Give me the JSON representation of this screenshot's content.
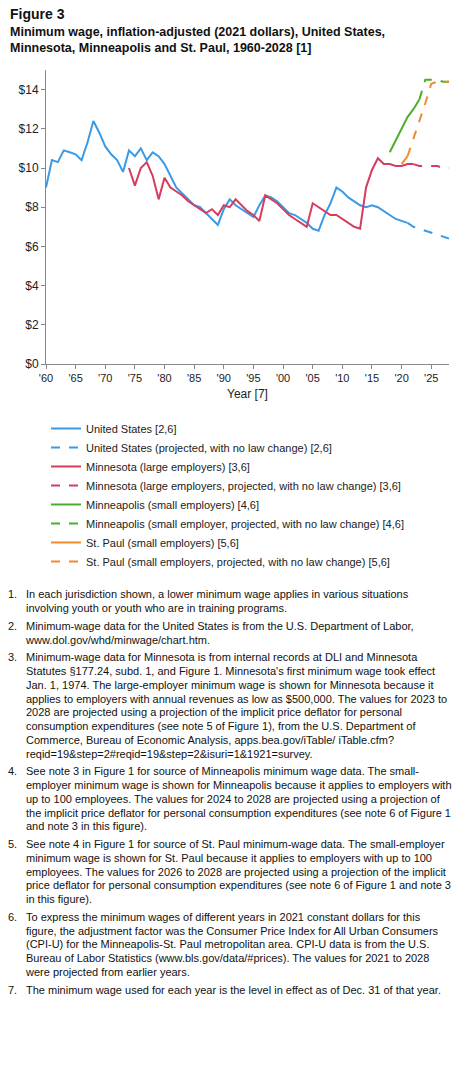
{
  "chart_data": {
    "type": "line",
    "title": "Figure 3",
    "subtitle": "Minimum wage, inflation-adjusted (2021 dollars), United States, Minnesota, Minneapolis and St. Paul, 1960-2028 [1]",
    "x_label": "Year [7]",
    "x": [
      1960,
      1961,
      1962,
      1963,
      1964,
      1965,
      1966,
      1967,
      1968,
      1969,
      1970,
      1971,
      1972,
      1973,
      1974,
      1975,
      1976,
      1977,
      1978,
      1979,
      1980,
      1981,
      1982,
      1983,
      1984,
      1985,
      1986,
      1987,
      1988,
      1989,
      1990,
      1991,
      1992,
      1993,
      1994,
      1995,
      1996,
      1997,
      1998,
      1999,
      2000,
      2001,
      2002,
      2003,
      2004,
      2005,
      2006,
      2007,
      2008,
      2009,
      2010,
      2011,
      2012,
      2013,
      2014,
      2015,
      2016,
      2017,
      2018,
      2019,
      2020,
      2021,
      2022,
      2023,
      2024,
      2025,
      2026,
      2027,
      2028
    ],
    "xlim": [
      1960,
      2028
    ],
    "xticks": [
      {
        "value": 1960,
        "label": "'60"
      },
      {
        "value": 1965,
        "label": "'65"
      },
      {
        "value": 1970,
        "label": "'70"
      },
      {
        "value": 1975,
        "label": "'75"
      },
      {
        "value": 1980,
        "label": "'80"
      },
      {
        "value": 1985,
        "label": "'85"
      },
      {
        "value": 1990,
        "label": "'90"
      },
      {
        "value": 1995,
        "label": "'95"
      },
      {
        "value": 2000,
        "label": "'00"
      },
      {
        "value": 2005,
        "label": "'05"
      },
      {
        "value": 2010,
        "label": "'10"
      },
      {
        "value": 2015,
        "label": "'15"
      },
      {
        "value": 2020,
        "label": "'20"
      },
      {
        "value": 2025,
        "label": "'25"
      }
    ],
    "ylim": [
      0,
      15
    ],
    "yticks": [
      {
        "value": 0,
        "label": "$0"
      },
      {
        "value": 2,
        "label": "$2"
      },
      {
        "value": 4,
        "label": "$4"
      },
      {
        "value": 6,
        "label": "$6"
      },
      {
        "value": 8,
        "label": "$8"
      },
      {
        "value": 10,
        "label": "$10"
      },
      {
        "value": 12,
        "label": "$12"
      },
      {
        "value": 14,
        "label": "$14"
      }
    ],
    "grid": false,
    "legend": "bottom",
    "series": [
      {
        "name": "United States [2,6]",
        "color": "#3a9ae6",
        "line_style": "solid",
        "values": [
          9.0,
          10.4,
          10.3,
          10.9,
          10.8,
          10.7,
          10.4,
          11.3,
          12.4,
          11.8,
          11.1,
          10.7,
          10.4,
          9.8,
          10.9,
          10.6,
          11.0,
          10.4,
          10.8,
          10.6,
          10.2,
          9.6,
          9.0,
          8.7,
          8.4,
          8.1,
          8.0,
          7.7,
          7.4,
          7.1,
          7.9,
          8.4,
          8.1,
          7.9,
          7.7,
          7.5,
          8.1,
          8.6,
          8.5,
          8.3,
          8.0,
          7.7,
          7.6,
          7.4,
          7.2,
          6.9,
          6.8,
          7.6,
          8.2,
          9.0,
          8.8,
          8.5,
          8.3,
          8.1,
          8.0,
          8.1,
          8.0,
          7.8,
          7.6,
          7.4,
          7.3,
          7.2,
          null,
          null,
          null,
          null,
          null,
          null,
          null
        ]
      },
      {
        "name": "United States (projected, with no law change) [2,6]",
        "color": "#3a9ae6",
        "line_style": "dash",
        "values": [
          null,
          null,
          null,
          null,
          null,
          null,
          null,
          null,
          null,
          null,
          null,
          null,
          null,
          null,
          null,
          null,
          null,
          null,
          null,
          null,
          null,
          null,
          null,
          null,
          null,
          null,
          null,
          null,
          null,
          null,
          null,
          null,
          null,
          null,
          null,
          null,
          null,
          null,
          null,
          null,
          null,
          null,
          null,
          null,
          null,
          null,
          null,
          null,
          null,
          null,
          null,
          null,
          null,
          null,
          null,
          null,
          null,
          null,
          null,
          null,
          null,
          7.2,
          7.0,
          6.9,
          6.8,
          6.7,
          6.6,
          6.5,
          6.4
        ]
      },
      {
        "name": "Minnesota (large employers) [3,6]",
        "color": "#d63c5e",
        "line_style": "solid",
        "values": [
          null,
          null,
          null,
          null,
          null,
          null,
          null,
          null,
          null,
          null,
          null,
          null,
          null,
          null,
          10.0,
          9.1,
          10.0,
          10.3,
          9.6,
          8.4,
          9.5,
          9.0,
          8.8,
          8.6,
          8.3,
          8.1,
          7.9,
          7.7,
          7.9,
          7.6,
          8.1,
          8.0,
          8.4,
          8.1,
          7.8,
          7.6,
          7.3,
          8.6,
          8.4,
          8.2,
          7.9,
          7.6,
          7.4,
          7.2,
          7.0,
          8.2,
          8.0,
          7.8,
          7.6,
          7.6,
          7.4,
          7.2,
          7.0,
          6.9,
          9.0,
          9.9,
          10.5,
          10.2,
          10.2,
          10.1,
          10.1,
          10.2,
          10.2,
          null,
          null,
          null,
          null,
          null,
          null
        ]
      },
      {
        "name": "Minnesota (large employers, projected, with no law change) [3,6]",
        "color": "#d63c5e",
        "line_style": "dash",
        "values": [
          null,
          null,
          null,
          null,
          null,
          null,
          null,
          null,
          null,
          null,
          null,
          null,
          null,
          null,
          null,
          null,
          null,
          null,
          null,
          null,
          null,
          null,
          null,
          null,
          null,
          null,
          null,
          null,
          null,
          null,
          null,
          null,
          null,
          null,
          null,
          null,
          null,
          null,
          null,
          null,
          null,
          null,
          null,
          null,
          null,
          null,
          null,
          null,
          null,
          null,
          null,
          null,
          null,
          null,
          null,
          null,
          null,
          null,
          null,
          null,
          null,
          null,
          10.2,
          10.1,
          10.1,
          10.1,
          10.1,
          10.0,
          10.0
        ]
      },
      {
        "name": "Minneapolis (small employers) [4,6]",
        "color": "#4caf2a",
        "line_style": "solid",
        "values": [
          null,
          null,
          null,
          null,
          null,
          null,
          null,
          null,
          null,
          null,
          null,
          null,
          null,
          null,
          null,
          null,
          null,
          null,
          null,
          null,
          null,
          null,
          null,
          null,
          null,
          null,
          null,
          null,
          null,
          null,
          null,
          null,
          null,
          null,
          null,
          null,
          null,
          null,
          null,
          null,
          null,
          null,
          null,
          null,
          null,
          null,
          null,
          null,
          null,
          null,
          null,
          null,
          null,
          null,
          null,
          null,
          null,
          null,
          10.8,
          11.4,
          12.0,
          12.6,
          13.0,
          13.5,
          null,
          null,
          null,
          null,
          null
        ]
      },
      {
        "name": "Minneapolis (small employer, projected, with no law change) [4,6]",
        "color": "#4caf2a",
        "line_style": "dash",
        "values": [
          null,
          null,
          null,
          null,
          null,
          null,
          null,
          null,
          null,
          null,
          null,
          null,
          null,
          null,
          null,
          null,
          null,
          null,
          null,
          null,
          null,
          null,
          null,
          null,
          null,
          null,
          null,
          null,
          null,
          null,
          null,
          null,
          null,
          null,
          null,
          null,
          null,
          null,
          null,
          null,
          null,
          null,
          null,
          null,
          null,
          null,
          null,
          null,
          null,
          null,
          null,
          null,
          null,
          null,
          null,
          null,
          null,
          null,
          null,
          null,
          null,
          null,
          null,
          13.5,
          14.5,
          14.5,
          14.5,
          14.4,
          14.4
        ]
      },
      {
        "name": "St. Paul (small employers) [5,6]",
        "color": "#f28a2e",
        "line_style": "solid",
        "values": [
          null,
          null,
          null,
          null,
          null,
          null,
          null,
          null,
          null,
          null,
          null,
          null,
          null,
          null,
          null,
          null,
          null,
          null,
          null,
          null,
          null,
          null,
          null,
          null,
          null,
          null,
          null,
          null,
          null,
          null,
          null,
          null,
          null,
          null,
          null,
          null,
          null,
          null,
          null,
          null,
          null,
          null,
          null,
          null,
          null,
          null,
          null,
          null,
          null,
          null,
          null,
          null,
          null,
          null,
          null,
          null,
          null,
          null,
          null,
          null,
          10.2,
          10.6,
          null,
          null,
          null,
          null,
          null,
          null,
          null
        ]
      },
      {
        "name": "St. Paul (small employers, projected, with no law change) [5,6]",
        "color": "#f28a2e",
        "line_style": "dash",
        "values": [
          null,
          null,
          null,
          null,
          null,
          null,
          null,
          null,
          null,
          null,
          null,
          null,
          null,
          null,
          null,
          null,
          null,
          null,
          null,
          null,
          null,
          null,
          null,
          null,
          null,
          null,
          null,
          null,
          null,
          null,
          null,
          null,
          null,
          null,
          null,
          null,
          null,
          null,
          null,
          null,
          null,
          null,
          null,
          null,
          null,
          null,
          null,
          null,
          null,
          null,
          null,
          null,
          null,
          null,
          null,
          null,
          null,
          null,
          null,
          null,
          null,
          10.6,
          11.5,
          12.3,
          13.3,
          14.3,
          14.4,
          14.4,
          14.4
        ]
      }
    ],
    "notes": [
      {
        "number": "1.",
        "text": "In each jurisdiction shown, a lower minimum wage applies in various situations involving youth or youth who are in training programs."
      },
      {
        "number": "2.",
        "text": "Minimum-wage data for the United States is from the U.S. Department of Labor, www.dol.gov/whd/minwage/chart.htm."
      },
      {
        "number": "3.",
        "text": "Minimum-wage data for Minnesota is from internal records at DLI and Minnesota Statutes §177.24, subd. 1, and Figure 1. Minnesota's first minimum wage took effect Jan. 1, 1974. The large-employer minimum wage is shown for Minnesota because it applies to employers with annual revenues as low as $500,000. The values for 2023 to 2028 are projected using a projection of the implicit price deflator for personal consumption expenditures (see note 5 of Figure 1), from the U.S. Department of Commerce, Bureau of Economic Analysis, apps.bea.gov/iTable/ iTable.cfm?reqid=19&step=2#reqid=19&step=2&isuri=1&1921=survey."
      },
      {
        "number": "4.",
        "text": "See note 3 in Figure 1 for source of Minneapolis minimum wage data. The small-employer minimum wage is shown for Minneapolis because it applies to employers with up to 100 employees. The values for 2024 to 2028 are projected using a projection of the implicit price deflator for personal consumption expenditures (see note 6 of Figure 1 and note 3 in this figure)."
      },
      {
        "number": "5.",
        "text": "See note 4 in Figure 1 for source of St. Paul minimum-wage data. The small-employer minimum wage is shown for St. Paul because it applies to employers with up to 100 employees. The values for 2026 to 2028 are projected using a projection of the implicit price deflator for personal consumption expenditures (see note 6 of Figure 1 and note 3 in this figure)."
      },
      {
        "number": "6.",
        "text": "To express the minimum wages of different years in 2021 constant dollars for this figure, the adjustment factor was the Consumer Price Index for All Urban Consumers (CPI-U) for the Minneapolis-St. Paul metropolitan area. CPI-U data is from the U.S. Bureau of Labor Statistics (www.bls.gov/data/#prices). The values for 2021 to 2028 were projected from earlier years."
      },
      {
        "number": "7.",
        "text": "The minimum wage used for each year is the level in effect as of Dec. 31 of that year."
      }
    ]
  }
}
